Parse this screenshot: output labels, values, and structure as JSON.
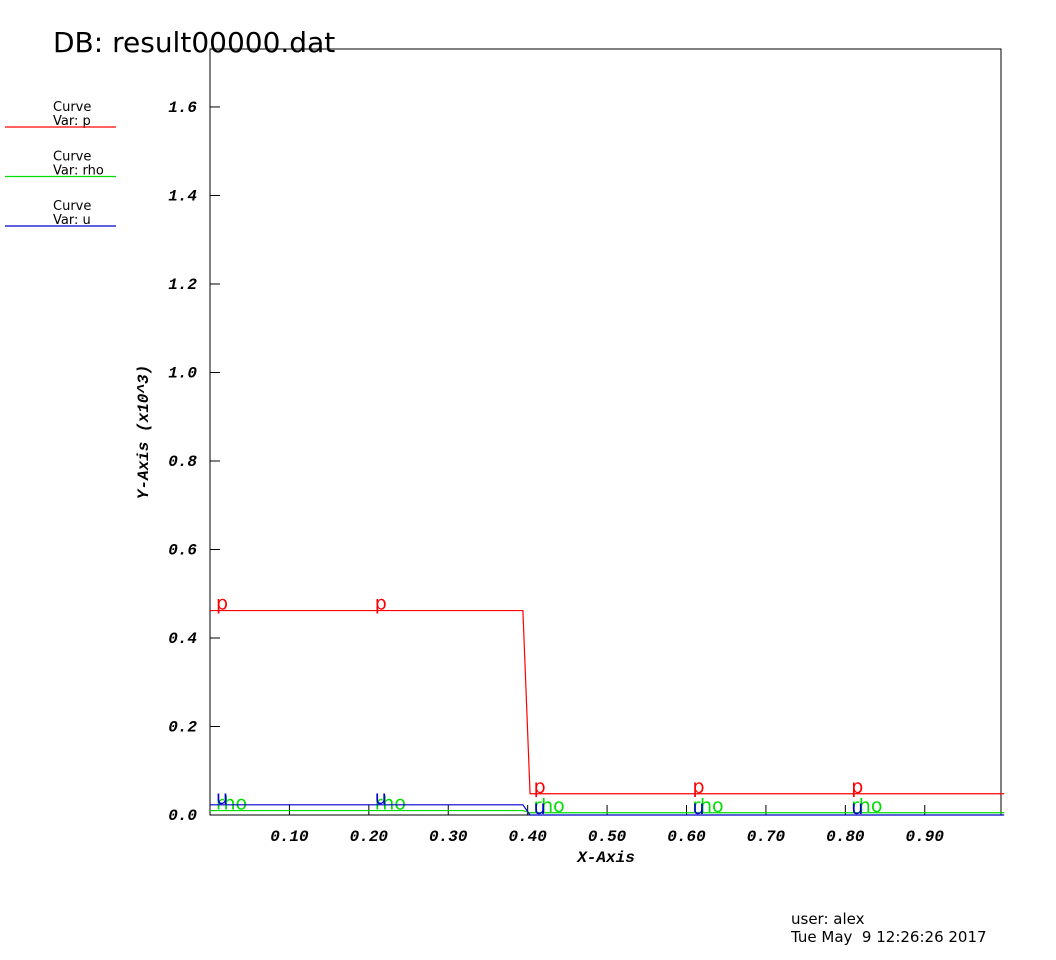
{
  "chart_data": {
    "type": "line",
    "title": "DB: result00000.dat",
    "x_label": "X-Axis",
    "y_label": "Y-Axis (x10^3)",
    "x": [
      0,
      0.394,
      0.403,
      1.0
    ],
    "series": [
      {
        "name": "p",
        "legend_title": "Curve",
        "legend_label": "Var: p",
        "color": "#ff0000",
        "values": [
          0.462,
          0.462,
          0.048,
          0.048
        ]
      },
      {
        "name": "rho",
        "legend_title": "Curve",
        "legend_label": "Var: rho",
        "color": "#00dd00",
        "values": [
          0.01,
          0.01,
          0.005,
          0.005
        ]
      },
      {
        "name": "u",
        "legend_title": "Curve",
        "legend_label": "Var: u",
        "color": "#0000cc",
        "values": [
          0.023,
          0.023,
          0,
          0
        ]
      }
    ],
    "xlim": [
      0,
      0.996
    ],
    "ylim": [
      0,
      1.731
    ],
    "xticks": [
      {
        "value": 0.1,
        "label": "0.10"
      },
      {
        "value": 0.2,
        "label": "0.20"
      },
      {
        "value": 0.3,
        "label": "0.30"
      },
      {
        "value": 0.4,
        "label": "0.40"
      },
      {
        "value": 0.5,
        "label": "0.50"
      },
      {
        "value": 0.6,
        "label": "0.60"
      },
      {
        "value": 0.7,
        "label": "0.70"
      },
      {
        "value": 0.8,
        "label": "0.80"
      },
      {
        "value": 0.9,
        "label": "0.90"
      }
    ],
    "yticks": [
      {
        "value": 0,
        "label": "0.0"
      },
      {
        "value": 0.2,
        "label": "0.2"
      },
      {
        "value": 0.4,
        "label": "0.4"
      },
      {
        "value": 0.6,
        "label": "0.6"
      },
      {
        "value": 0.8,
        "label": "0.8"
      },
      {
        "value": 1.0,
        "label": "1.0"
      },
      {
        "value": 1.2,
        "label": "1.2"
      },
      {
        "value": 1.4,
        "label": "1.4"
      },
      {
        "value": 1.6,
        "label": "1.6"
      }
    ],
    "user": "user: alex",
    "date": "Tue May  9 12:26:26 2017"
  }
}
